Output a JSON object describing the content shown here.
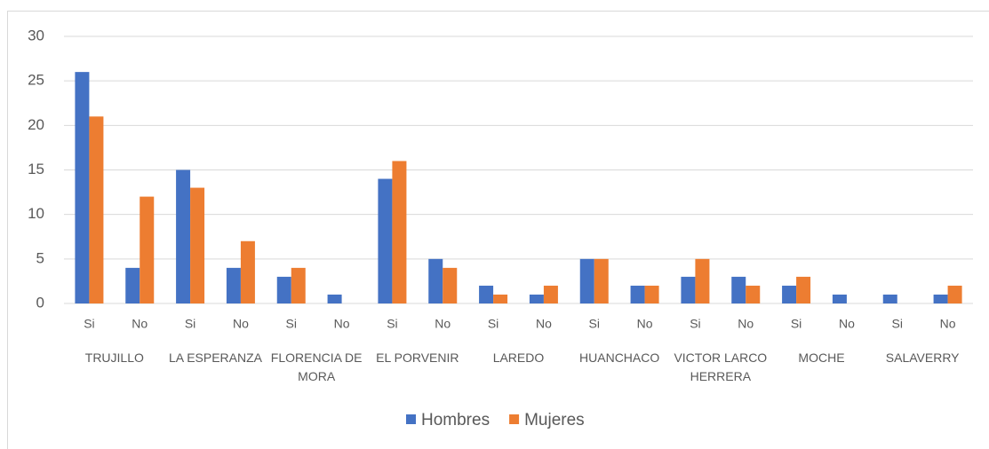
{
  "chart_data": {
    "type": "bar",
    "categories": [
      "Si",
      "No",
      "Si",
      "No",
      "Si",
      "No",
      "Si",
      "No",
      "Si",
      "No",
      "Si",
      "No",
      "Si",
      "No",
      "Si",
      "No",
      "Si",
      "No"
    ],
    "groups": [
      "TRUJILLO",
      "LA ESPERANZA",
      "FLORENCIA DE MORA",
      "EL PORVENIR",
      "LAREDO",
      "HUANCHACO",
      "VICTOR LARCO HERRERA",
      "MOCHE",
      "SALAVERRY"
    ],
    "series": [
      {
        "name": "Hombres",
        "color": "#4472c4",
        "values": [
          26,
          4,
          15,
          4,
          3,
          1,
          14,
          5,
          2,
          1,
          5,
          2,
          3,
          3,
          2,
          1,
          1,
          1
        ]
      },
      {
        "name": "Mujeres",
        "color": "#ed7d31",
        "values": [
          21,
          12,
          13,
          7,
          4,
          null,
          16,
          4,
          1,
          2,
          5,
          2,
          5,
          2,
          3,
          null,
          null,
          2
        ]
      }
    ],
    "ylim": [
      0,
      30
    ],
    "yticks": [
      0,
      5,
      10,
      15,
      20,
      25,
      30
    ],
    "grid": true,
    "legend": "bottom"
  }
}
